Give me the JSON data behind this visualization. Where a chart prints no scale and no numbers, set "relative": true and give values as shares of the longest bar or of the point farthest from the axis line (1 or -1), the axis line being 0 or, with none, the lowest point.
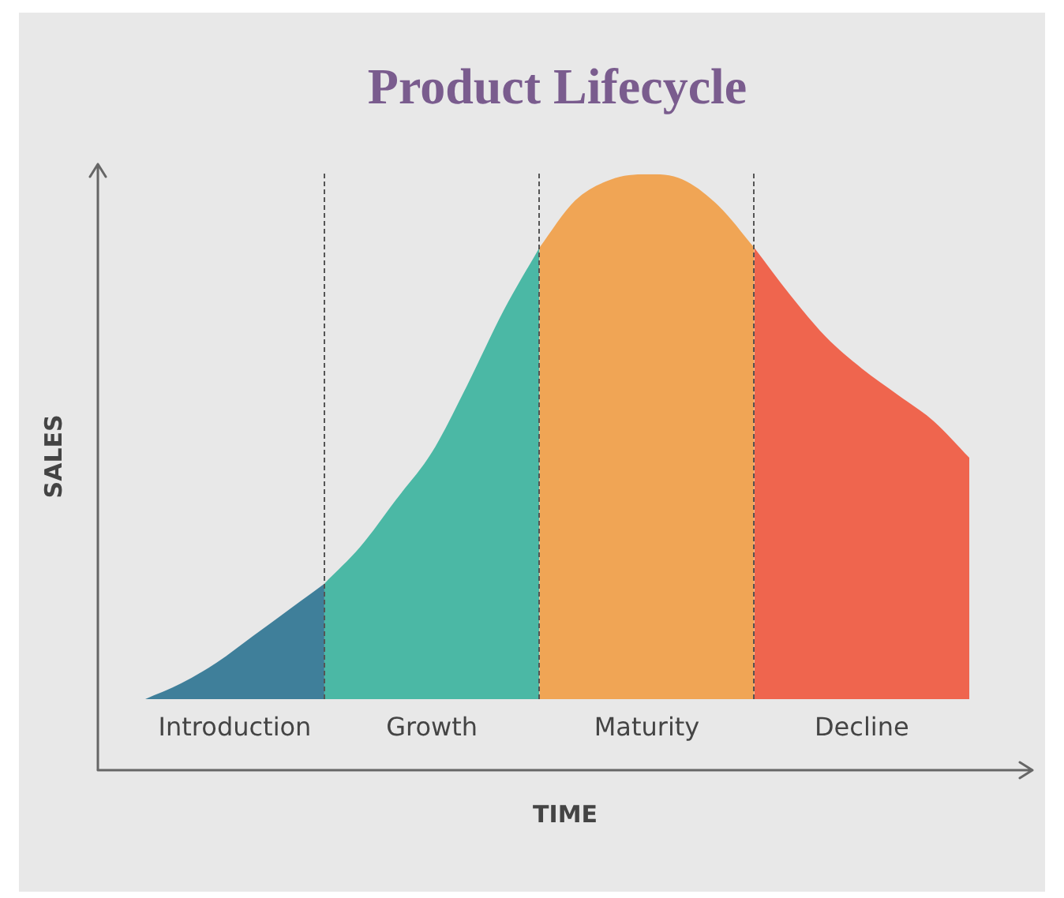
{
  "chart_data": {
    "type": "area",
    "title": "Product Lifecycle",
    "xlabel": "TIME",
    "ylabel": "SALES",
    "relative": true,
    "grid": "x",
    "legend": false,
    "categories": [
      null,
      null,
      null,
      null,
      null,
      null,
      null,
      null,
      null,
      null,
      null,
      null,
      null,
      null,
      null,
      null,
      null,
      null,
      null,
      null,
      null,
      null,
      null,
      null
    ],
    "series": [
      {
        "name": "Introduction",
        "color": "#3f7f9a",
        "values": [
          0,
          0.03,
          0.07,
          0.12,
          0.17,
          0.22,
          null,
          null,
          null,
          null,
          null,
          null,
          null,
          null,
          null,
          null,
          null,
          null,
          null,
          null,
          null,
          null,
          null,
          null
        ]
      },
      {
        "name": "Growth",
        "color": "#4bb8a5",
        "values": [
          null,
          null,
          null,
          null,
          null,
          0.22,
          0.29,
          0.38,
          0.47,
          0.6,
          0.74,
          0.86,
          null,
          null,
          null,
          null,
          null,
          null,
          null,
          null,
          null,
          null,
          null,
          null
        ]
      },
      {
        "name": "Maturity",
        "color": "#f0a555",
        "values": [
          null,
          null,
          null,
          null,
          null,
          null,
          null,
          null,
          null,
          null,
          null,
          0.86,
          0.95,
          0.99,
          1,
          0.99,
          0.94,
          0.86,
          null,
          null,
          null,
          null,
          null,
          null
        ]
      },
      {
        "name": "Decline",
        "color": "#ef654e",
        "values": [
          null,
          null,
          null,
          null,
          null,
          null,
          null,
          null,
          null,
          null,
          null,
          null,
          null,
          null,
          null,
          null,
          null,
          0.86,
          0.77,
          0.69,
          0.63,
          0.58,
          0.53,
          0.46
        ]
      }
    ]
  }
}
